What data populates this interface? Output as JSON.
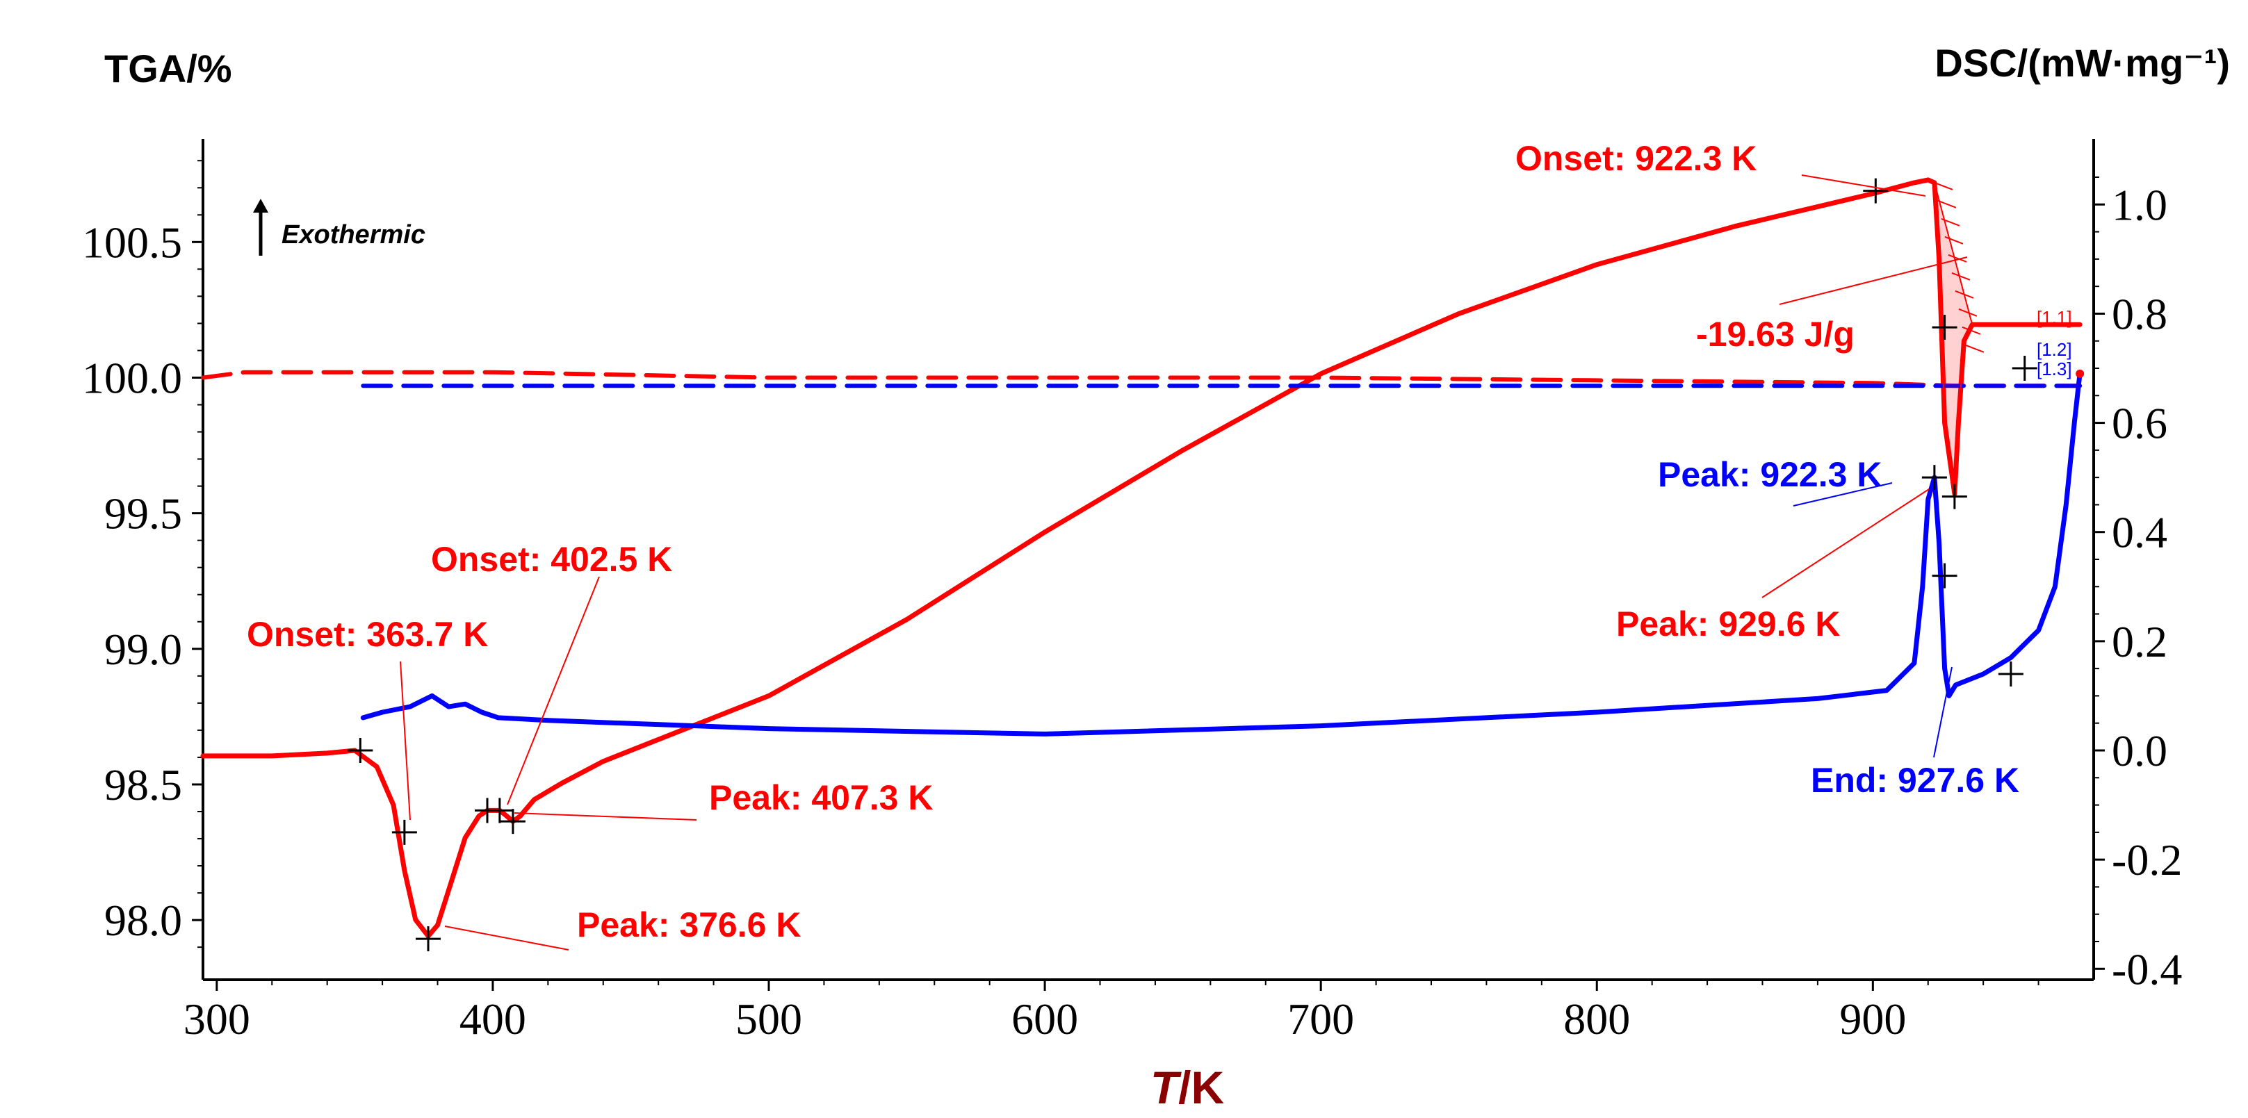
{
  "chart_data": {
    "type": "line",
    "title": "",
    "xlabel_italic": "T",
    "xlabel_unit": "/K",
    "y_left_label": "TGA/%",
    "y_right_label": "DSC/(mW·mg⁻¹)",
    "exothermic_label": "Exothermic",
    "xlim": [
      295,
      980
    ],
    "y_left_lim": [
      97.78,
      100.88
    ],
    "y_right_lim": [
      -0.42,
      1.12
    ],
    "x_ticks": [
      300,
      400,
      500,
      600,
      700,
      800,
      900
    ],
    "x_tick_labels": [
      "300",
      "400",
      "500",
      "600",
      "700",
      "800",
      "900"
    ],
    "y_left_ticks": [
      98.0,
      98.5,
      99.0,
      99.5,
      100.0,
      100.5
    ],
    "y_left_tick_labels": [
      "98.0",
      "98.5",
      "99.0",
      "99.5",
      "100.0",
      "100.5"
    ],
    "y_right_ticks": [
      -0.4,
      -0.2,
      0.0,
      0.2,
      0.4,
      0.6,
      0.8,
      1.0
    ],
    "y_right_tick_labels": [
      "-0.4",
      "-0.2",
      "0.0",
      "0.2",
      "0.4",
      "0.6",
      "0.8",
      "1.0"
    ],
    "series": [
      {
        "name": "DSC red (solid)",
        "axis": "right",
        "color": "#ff0000",
        "dash": false,
        "x": [
          295,
          320,
          340,
          350,
          358,
          364,
          368,
          372,
          376.6,
          380,
          385,
          390,
          395,
          398,
          402.5,
          405,
          407.3,
          410,
          415,
          425,
          440,
          460,
          480,
          500,
          550,
          600,
          650,
          700,
          750,
          800,
          850,
          900,
          915,
          920,
          922.3,
          924,
          926,
          929.6,
          931,
          933,
          936,
          940,
          950,
          960,
          975
        ],
        "y": [
          -0.01,
          -0.01,
          -0.005,
          0.0,
          -0.03,
          -0.1,
          -0.22,
          -0.31,
          -0.34,
          -0.32,
          -0.24,
          -0.16,
          -0.12,
          -0.11,
          -0.11,
          -0.12,
          -0.13,
          -0.12,
          -0.09,
          -0.06,
          -0.02,
          0.02,
          0.06,
          0.1,
          0.24,
          0.4,
          0.55,
          0.69,
          0.8,
          0.89,
          0.96,
          1.02,
          1.04,
          1.045,
          1.04,
          0.9,
          0.6,
          0.47,
          0.6,
          0.75,
          0.78,
          0.78,
          0.78,
          0.78,
          0.78
        ]
      },
      {
        "name": "DSC blue (solid)",
        "axis": "right",
        "color": "#0000ff",
        "dash": false,
        "x": [
          353,
          360,
          370,
          378,
          384,
          390,
          396,
          402,
          420,
          500,
          600,
          700,
          800,
          880,
          905,
          915,
          918,
          920,
          922.3,
          924,
          926,
          927.6,
          930,
          940,
          950,
          960,
          966,
          970,
          973,
          975
        ],
        "y": [
          0.06,
          0.07,
          0.08,
          0.1,
          0.08,
          0.085,
          0.07,
          0.06,
          0.055,
          0.04,
          0.03,
          0.045,
          0.07,
          0.095,
          0.11,
          0.16,
          0.3,
          0.46,
          0.5,
          0.38,
          0.15,
          0.1,
          0.12,
          0.14,
          0.17,
          0.22,
          0.3,
          0.45,
          0.6,
          0.69
        ]
      },
      {
        "name": "TGA red (dashed)",
        "axis": "left",
        "color": "#ff0000",
        "dash": true,
        "x": [
          295,
          310,
          350,
          400,
          500,
          600,
          700,
          800,
          900,
          930,
          950,
          970,
          975
        ],
        "y": [
          100.0,
          100.02,
          100.02,
          100.02,
          100.0,
          100.0,
          100.0,
          99.99,
          99.98,
          99.97,
          99.97,
          99.97,
          99.97
        ]
      },
      {
        "name": "TGA blue (dashed)",
        "axis": "left",
        "color": "#0000ff",
        "dash": true,
        "x": [
          353,
          400,
          500,
          600,
          700,
          800,
          900,
          930,
          950,
          970,
          975
        ],
        "y": [
          99.97,
          99.97,
          99.97,
          99.97,
          99.97,
          99.97,
          99.97,
          99.97,
          99.97,
          99.97,
          99.97
        ]
      }
    ],
    "markers": [
      {
        "series": 0,
        "x": 352,
        "y": 0.0
      },
      {
        "series": 0,
        "x": 368,
        "y": -0.15
      },
      {
        "series": 0,
        "x": 376.6,
        "y": -0.345
      },
      {
        "series": 0,
        "x": 398,
        "y": -0.11
      },
      {
        "series": 0,
        "x": 402.5,
        "y": -0.11
      },
      {
        "series": 0,
        "x": 407.3,
        "y": -0.13
      },
      {
        "series": 0,
        "x": 901,
        "y": 1.025
      },
      {
        "series": 0,
        "x": 926,
        "y": 0.775
      },
      {
        "series": 0,
        "x": 929.6,
        "y": 0.465
      },
      {
        "series": 0,
        "x": 955,
        "y": 0.7
      },
      {
        "series": 1,
        "x": 922.3,
        "y": 0.5
      },
      {
        "series": 1,
        "x": 926,
        "y": 0.32
      },
      {
        "series": 1,
        "x": 950,
        "y": 0.14
      }
    ],
    "annotations": [
      {
        "text": "Onset: 922.3 K",
        "color": "red"
      },
      {
        "text": "-19.63 J/g",
        "color": "red"
      },
      {
        "text": "Peak: 922.3 K",
        "color": "blue"
      },
      {
        "text": "Peak: 929.6 K",
        "color": "red"
      },
      {
        "text": "End: 927.6 K",
        "color": "blue"
      },
      {
        "text": "Onset: 402.5 K",
        "color": "red"
      },
      {
        "text": "Onset: 363.7 K",
        "color": "red"
      },
      {
        "text": "Peak: 407.3 K",
        "color": "red"
      },
      {
        "text": "Peak: 376.6 K",
        "color": "red"
      }
    ],
    "small_labels": [
      "[1.1]",
      "[1.2]",
      "[1.3]"
    ]
  }
}
